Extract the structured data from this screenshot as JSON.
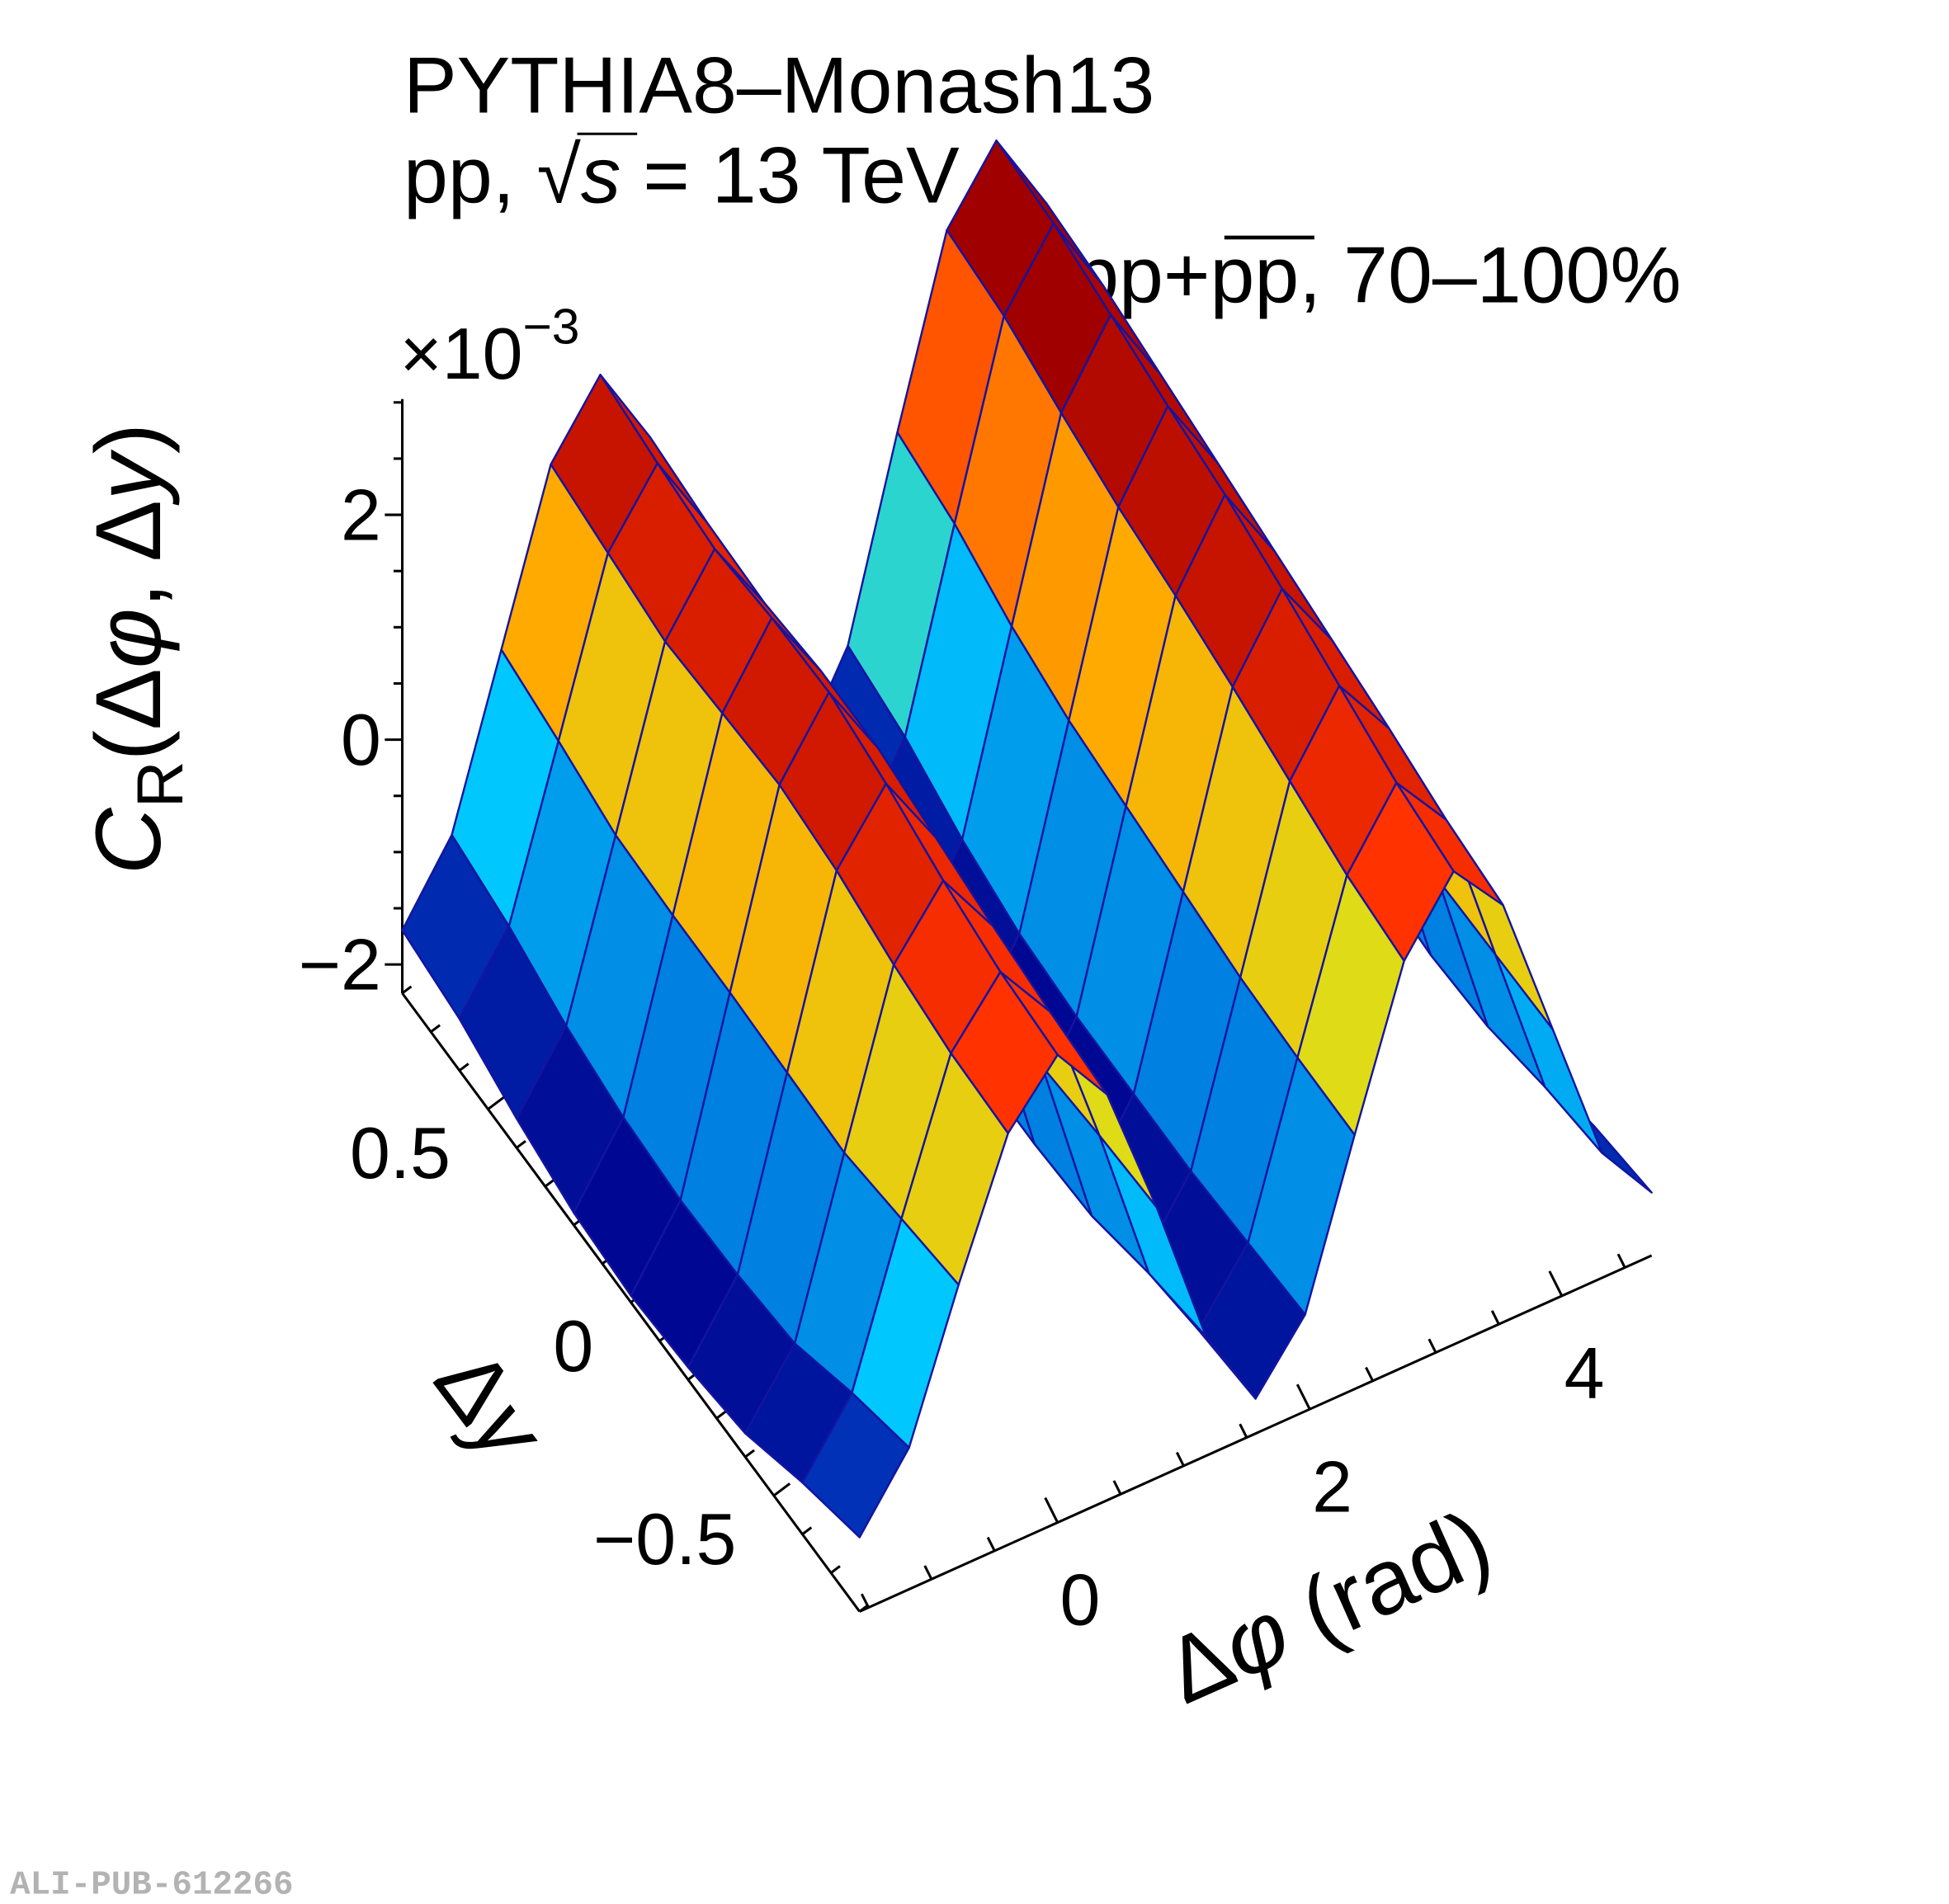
{
  "chart_data": {
    "type": "surface",
    "title_lines": [
      "PYTHIA8–Monash13",
      "pp, ",
      "s",
      " = 13 TeV"
    ],
    "sqrt_symbol": "√",
    "selection": {
      "prefix": "pp+",
      "anti": "pp",
      "suffix": ", 70–100%"
    },
    "zlabel_parts": [
      "C",
      "R",
      "(Δ",
      "φ",
      ", Δ",
      "y",
      ")"
    ],
    "z_multiplier": {
      "base": "×10",
      "exp": "−3"
    },
    "xlabel_parts": [
      "Δ",
      "φ",
      " (rad)"
    ],
    "ylabel_parts": [
      "Δ",
      "y"
    ],
    "watermark": "ALI-PUB-612266",
    "x_range": [
      -1.5708,
      4.7124
    ],
    "y_range": [
      -0.8,
      0.8
    ],
    "z_range": [
      -2.26,
      3.03
    ],
    "x_ticks": [
      {
        "v": 0,
        "label": "0"
      },
      {
        "v": 2,
        "label": "2"
      },
      {
        "v": 4,
        "label": "4"
      }
    ],
    "y_ticks": [
      {
        "v": 0.5,
        "label": "0.5"
      },
      {
        "v": 0,
        "label": "0"
      },
      {
        "v": -0.5,
        "label": "−0.5"
      }
    ],
    "z_ticks": [
      {
        "v": 2,
        "label": "2"
      },
      {
        "v": 0,
        "label": "0"
      },
      {
        "v": -2,
        "label": "−2"
      }
    ],
    "x_bins": 16,
    "y_bins": 8,
    "z_values_note_units": "1e-3",
    "z": [
      [
        -1.6,
        -0.4,
        0.9,
        1.9,
        1.9,
        0.8,
        -0.5,
        -1.9,
        -2.0,
        -0.8,
        0.8,
        1.9,
        2.0,
        0.9,
        -0.6,
        -1.7
      ],
      [
        -2.0,
        -0.8,
        0.9,
        2.0,
        2.0,
        0.9,
        -0.8,
        -2.1,
        -2.1,
        -0.9,
        0.9,
        2.1,
        2.2,
        1.0,
        -0.8,
        -1.9
      ],
      [
        -2.1,
        -0.9,
        1.0,
        2.2,
        2.1,
        0.9,
        -0.9,
        -2.2,
        -2.1,
        -0.9,
        1.0,
        2.3,
        2.3,
        1.1,
        -0.9,
        -2.0
      ],
      [
        -2.2,
        -0.9,
        1.1,
        2.4,
        2.3,
        1.0,
        -0.9,
        -2.2,
        -2.2,
        -0.8,
        1.1,
        2.5,
        2.5,
        1.1,
        -0.9,
        -2.0
      ],
      [
        -2.2,
        -0.9,
        1.1,
        2.4,
        2.4,
        1.0,
        -0.9,
        -2.2,
        -2.2,
        -0.8,
        1.2,
        2.6,
        2.6,
        1.2,
        -0.8,
        -1.9
      ],
      [
        -2.1,
        -0.8,
        1.0,
        2.3,
        2.3,
        1.0,
        -0.8,
        -2.1,
        -2.1,
        -0.7,
        1.3,
        2.7,
        2.7,
        1.3,
        -0.7,
        -1.8
      ],
      [
        -1.9,
        -0.7,
        1.0,
        2.3,
        2.2,
        0.9,
        -0.7,
        -2.0,
        -1.9,
        -0.5,
        1.5,
        2.9,
        2.8,
        1.4,
        -0.5,
        -1.6
      ],
      [
        -1.7,
        -0.4,
        1.2,
        2.5,
        2.4,
        1.0,
        -0.5,
        -1.8,
        -1.7,
        -0.2,
        1.7,
        3.0,
        2.9,
        1.5,
        -0.3,
        -1.4
      ]
    ]
  }
}
